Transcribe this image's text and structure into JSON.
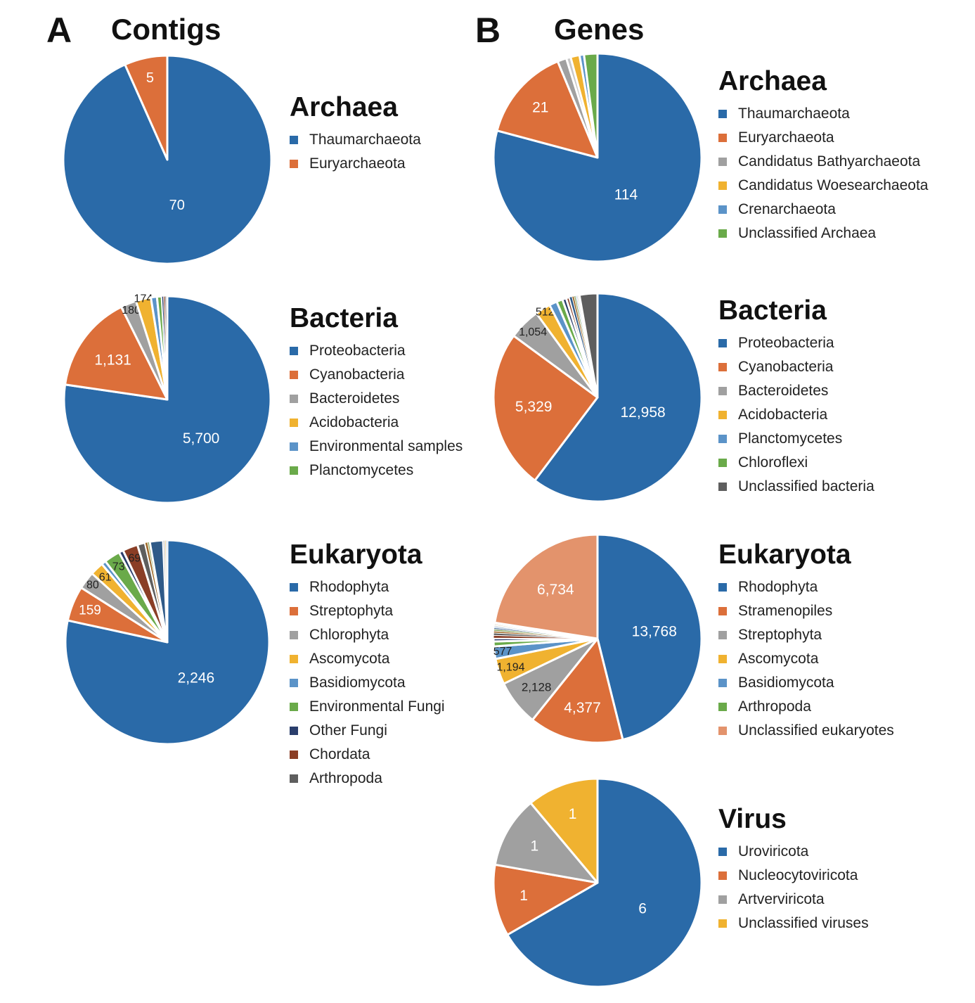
{
  "panels": [
    {
      "letter": "A",
      "title": "Contigs"
    },
    {
      "letter": "B",
      "title": "Genes"
    }
  ],
  "colors": {
    "blue": "#2a6aa8",
    "orange": "#dc6f3a",
    "gray": "#a0a0a0",
    "yellow": "#f0b230",
    "lightblue": "#5b93c8",
    "green": "#6aaa4a",
    "navy": "#2a3e6c",
    "brown": "#8a3e26",
    "darkgray": "#5e5e5e",
    "salmon": "#e3936c"
  },
  "chart_data": [
    {
      "type": "pie",
      "panel": "A",
      "title": "Archaea",
      "legend": [
        {
          "name": "Thaumarchaeota",
          "color": "#2a6aa8"
        },
        {
          "name": "Euryarchaeota",
          "color": "#dc6f3a"
        }
      ],
      "slices": [
        {
          "value": 70,
          "label": "70",
          "color": "#2a6aa8"
        },
        {
          "value": 5,
          "label": "5",
          "color": "#dc6f3a"
        }
      ]
    },
    {
      "type": "pie",
      "panel": "A",
      "title": "Bacteria",
      "legend": [
        {
          "name": "Proteobacteria",
          "color": "#2a6aa8"
        },
        {
          "name": "Cyanobacteria",
          "color": "#dc6f3a"
        },
        {
          "name": "Bacteroidetes",
          "color": "#a0a0a0"
        },
        {
          "name": "Acidobacteria",
          "color": "#f0b230"
        },
        {
          "name": "Environmental samples",
          "color": "#5b93c8"
        },
        {
          "name": "Planctomycetes",
          "color": "#6aaa4a"
        }
      ],
      "slices": [
        {
          "value": 5700,
          "label": "5,700",
          "color": "#2a6aa8"
        },
        {
          "value": 1131,
          "label": "1,131",
          "color": "#dc6f3a"
        },
        {
          "value": 180,
          "label": "180",
          "color": "#a0a0a0"
        },
        {
          "value": 174,
          "label": "174",
          "color": "#f0b230"
        },
        {
          "value": 70,
          "color": "#5b93c8"
        },
        {
          "value": 55,
          "color": "#6aaa4a"
        },
        {
          "value": 20,
          "color": "#2a3e6c"
        },
        {
          "value": 18,
          "color": "#8a3e26"
        },
        {
          "value": 15,
          "color": "#5e5e5e"
        },
        {
          "value": 10,
          "color": "#c8c8c8"
        }
      ]
    },
    {
      "type": "pie",
      "panel": "A",
      "title": "Eukaryota",
      "legend": [
        {
          "name": "Rhodophyta",
          "color": "#2a6aa8"
        },
        {
          "name": "Streptophyta",
          "color": "#dc6f3a"
        },
        {
          "name": "Chlorophyta",
          "color": "#a0a0a0"
        },
        {
          "name": "Ascomycota",
          "color": "#f0b230"
        },
        {
          "name": "Basidiomycota",
          "color": "#5b93c8"
        },
        {
          "name": "Environmental Fungi",
          "color": "#6aaa4a"
        },
        {
          "name": "Other Fungi",
          "color": "#2a3e6c"
        },
        {
          "name": "Chordata",
          "color": "#8a3e26"
        },
        {
          "name": "Arthropoda",
          "color": "#5e5e5e"
        }
      ],
      "slices": [
        {
          "value": 2246,
          "label": "2,246",
          "color": "#2a6aa8"
        },
        {
          "value": 159,
          "label": "159",
          "color": "#dc6f3a"
        },
        {
          "value": 80,
          "label": "80",
          "color": "#a0a0a0"
        },
        {
          "value": 61,
          "label": "61",
          "color": "#f0b230"
        },
        {
          "value": 20,
          "color": "#5b93c8"
        },
        {
          "value": 73,
          "label": "73",
          "color": "#6aaa4a"
        },
        {
          "value": 20,
          "color": "#2a3e6c"
        },
        {
          "value": 69,
          "label": "69",
          "color": "#8a3e26"
        },
        {
          "value": 35,
          "color": "#5e5e5e"
        },
        {
          "value": 12,
          "color": "#a06a2a"
        },
        {
          "value": 10,
          "color": "#7a9a4a"
        },
        {
          "value": 60,
          "color": "#2f5a88"
        },
        {
          "value": 8,
          "color": "#c8c8c8"
        },
        {
          "value": 6,
          "color": "#e0c890"
        },
        {
          "value": 5,
          "color": "#9ab8d8"
        }
      ]
    },
    {
      "type": "pie",
      "panel": "B",
      "title": "Archaea",
      "legend": [
        {
          "name": "Thaumarchaeota",
          "color": "#2a6aa8"
        },
        {
          "name": "Euryarchaeota",
          "color": "#dc6f3a"
        },
        {
          "name": "Candidatus Bathyarchaeota",
          "color": "#a0a0a0"
        },
        {
          "name": "Candidatus Woesearchaeota",
          "color": "#f0b230"
        },
        {
          "name": "Crenarchaeota",
          "color": "#5b93c8"
        },
        {
          "name": "Unclassified Archaea",
          "color": "#6aaa4a"
        }
      ],
      "slices": [
        {
          "value": 114,
          "label": "114",
          "color": "#2a6aa8"
        },
        {
          "value": 21,
          "label": "21",
          "color": "#dc6f3a"
        },
        {
          "value": 2,
          "color": "#a0a0a0"
        },
        {
          "value": 1,
          "color": "#c8c8c8"
        },
        {
          "value": 2,
          "color": "#f0b230"
        },
        {
          "value": 1,
          "color": "#5b93c8"
        },
        {
          "value": 3,
          "color": "#6aaa4a"
        }
      ]
    },
    {
      "type": "pie",
      "panel": "B",
      "title": "Bacteria",
      "legend": [
        {
          "name": "Proteobacteria",
          "color": "#2a6aa8"
        },
        {
          "name": "Cyanobacteria",
          "color": "#dc6f3a"
        },
        {
          "name": "Bacteroidetes",
          "color": "#a0a0a0"
        },
        {
          "name": "Acidobacteria",
          "color": "#f0b230"
        },
        {
          "name": "Planctomycetes",
          "color": "#5b93c8"
        },
        {
          "name": "Chloroflexi",
          "color": "#6aaa4a"
        },
        {
          "name": "Unclassified bacteria",
          "color": "#5e5e5e"
        }
      ],
      "slices": [
        {
          "value": 12958,
          "label": "12,958",
          "color": "#2a6aa8"
        },
        {
          "value": 5329,
          "label": "5,329",
          "color": "#dc6f3a"
        },
        {
          "value": 1054,
          "label": "1,054",
          "color": "#a0a0a0"
        },
        {
          "value": 512,
          "label": "512",
          "color": "#f0b230"
        },
        {
          "value": 260,
          "color": "#5b93c8"
        },
        {
          "value": 200,
          "color": "#6aaa4a"
        },
        {
          "value": 130,
          "color": "#2a3e6c"
        },
        {
          "value": 110,
          "color": "#8a3e26"
        },
        {
          "value": 90,
          "color": "#2f5a88"
        },
        {
          "value": 70,
          "color": "#a06a2a"
        },
        {
          "value": 50,
          "color": "#7a9a4a"
        },
        {
          "value": 40,
          "color": "#9ab8d8"
        },
        {
          "value": 35,
          "color": "#c8c8c8"
        },
        {
          "value": 30,
          "color": "#e0c890"
        },
        {
          "value": 25,
          "color": "#b0b0b0"
        },
        {
          "value": 600,
          "color": "#5e5e5e"
        }
      ]
    },
    {
      "type": "pie",
      "panel": "B",
      "title": "Eukaryota",
      "legend": [
        {
          "name": "Rhodophyta",
          "color": "#2a6aa8"
        },
        {
          "name": "Stramenopiles",
          "color": "#dc6f3a"
        },
        {
          "name": "Streptophyta",
          "color": "#a0a0a0"
        },
        {
          "name": "Ascomycota",
          "color": "#f0b230"
        },
        {
          "name": "Basidiomycota",
          "color": "#5b93c8"
        },
        {
          "name": "Arthropoda",
          "color": "#6aaa4a"
        },
        {
          "name": "Unclassified eukaryotes",
          "color": "#e3936c"
        }
      ],
      "slices": [
        {
          "value": 13768,
          "label": "13,768",
          "color": "#2a6aa8"
        },
        {
          "value": 4377,
          "label": "4,377",
          "color": "#dc6f3a"
        },
        {
          "value": 2128,
          "label": "2,128",
          "color": "#a0a0a0"
        },
        {
          "value": 1194,
          "label": "1,194",
          "color": "#f0b230"
        },
        {
          "value": 577,
          "label": "577",
          "color": "#5b93c8"
        },
        {
          "value": 230,
          "color": "#6aaa4a"
        },
        {
          "value": 150,
          "color": "#2a3e6c"
        },
        {
          "value": 130,
          "color": "#8a3e26"
        },
        {
          "value": 110,
          "color": "#5e5e5e"
        },
        {
          "value": 90,
          "color": "#a06a2a"
        },
        {
          "value": 80,
          "color": "#7a9a4a"
        },
        {
          "value": 70,
          "color": "#2f5a88"
        },
        {
          "value": 60,
          "color": "#9ab8d8"
        },
        {
          "value": 50,
          "color": "#c8c8c8"
        },
        {
          "value": 45,
          "color": "#e0c890"
        },
        {
          "value": 40,
          "color": "#b0b0b0"
        },
        {
          "value": 35,
          "color": "#d8b8a8"
        },
        {
          "value": 6734,
          "label": "6,734",
          "color": "#e3936c"
        }
      ]
    },
    {
      "type": "pie",
      "panel": "B",
      "title": "Virus",
      "legend": [
        {
          "name": "Uroviricota",
          "color": "#2a6aa8"
        },
        {
          "name": "Nucleocytoviricota",
          "color": "#dc6f3a"
        },
        {
          "name": "Artverviricota",
          "color": "#a0a0a0"
        },
        {
          "name": "Unclassified viruses",
          "color": "#f0b230"
        }
      ],
      "slices": [
        {
          "value": 6,
          "label": "6",
          "color": "#2a6aa8"
        },
        {
          "value": 1,
          "label": "1",
          "color": "#dc6f3a"
        },
        {
          "value": 1,
          "label": "1",
          "color": "#a0a0a0"
        },
        {
          "value": 1,
          "label": "1",
          "color": "#f0b230"
        }
      ]
    }
  ]
}
